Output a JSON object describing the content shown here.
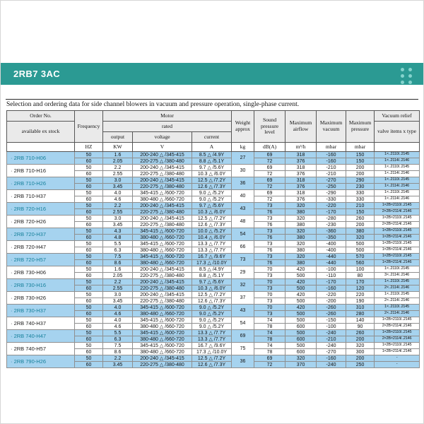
{
  "banner": {
    "title": "2RB7 3AC"
  },
  "intro": "Selection and ordering data for side channel blowers in vacuum and pressure operation, single-phase current.",
  "table": {
    "header": {
      "order_no": "Order No.",
      "available": "available ex stock",
      "frequency": "Frequency",
      "motor": "Motor",
      "rated": "rated",
      "output": "output",
      "voltage": "voltage",
      "current": "current",
      "weight": "Weight approx",
      "sound": "Sound pressure level",
      "airflow": "Maximum airflow",
      "vacuum": "Maximum vacuum",
      "pressure": "Maximum pressure",
      "relief": "Vacuum relief",
      "relief_sub": "valve items x type"
    },
    "units": {
      "frequency": "HZ",
      "output": "KW",
      "voltage": "V",
      "current": "A",
      "weight": "kg",
      "sound": "dB(A)",
      "airflow": "m³/h",
      "vacuum": "mbar",
      "pressure": "mbar"
    },
    "products": [
      {
        "order": "· 2RB 710-H06",
        "weight": "27",
        "highlight": true,
        "rows": [
          {
            "hz": "50",
            "kw": "1.6",
            "v": "200-240 △ /345-415",
            "a": "8.5 △ /4.9Y",
            "db": "69",
            "flow": "318",
            "vac": "-160",
            "press": "150",
            "relief": "1×..2110/..2145"
          },
          {
            "hz": "60",
            "kw": "2.05",
            "v": "220-275 △ /380-480",
            "a": "8.8 △ /5.1Y",
            "db": "72",
            "flow": "376",
            "vac": "-160",
            "press": "150",
            "relief": "1×..2114/..2146"
          }
        ]
      },
      {
        "order": "· 2RB 710-H16",
        "weight": "30",
        "highlight": false,
        "rows": [
          {
            "hz": "50",
            "kw": "2.2",
            "v": "200-240 △ /345-415",
            "a": "9.7 △ /5.6Y",
            "db": "69",
            "flow": "318",
            "vac": "-210",
            "press": "200",
            "relief": "1×..2110/..2145"
          },
          {
            "hz": "60",
            "kw": "2.55",
            "v": "220-275 △ /380-480",
            "a": "10.3 △ /6.0Y",
            "db": "72",
            "flow": "376",
            "vac": "-210",
            "press": "200",
            "relief": "1×..2114/..2146"
          }
        ]
      },
      {
        "order": "· 2RB 710-H26",
        "weight": "36",
        "highlight": true,
        "rows": [
          {
            "hz": "50",
            "kw": "3.0",
            "v": "200-240 △ /345-415",
            "a": "12.5 △ /7.2Y",
            "db": "69",
            "flow": "318",
            "vac": "-270",
            "press": "290",
            "relief": "1×..2110/..2145"
          },
          {
            "hz": "60",
            "kw": "3.45",
            "v": "220-275 △ /380-480",
            "a": "12.6 △ /7.3Y",
            "db": "72",
            "flow": "376",
            "vac": "-250",
            "press": "230",
            "relief": "1×..2114/..2146"
          }
        ]
      },
      {
        "order": "· 2RB 710-H37",
        "weight": "40",
        "highlight": false,
        "rows": [
          {
            "hz": "50",
            "kw": "4.0",
            "v": "345-415 △ /600-720",
            "a": "9.0 △ /5.2Y",
            "db": "69",
            "flow": "318",
            "vac": "-290",
            "press": "330",
            "relief": "1×..2110/..2145"
          },
          {
            "hz": "60",
            "kw": "4.6",
            "v": "380-480 △ /660-720",
            "a": "9.0 △ /5.2Y",
            "db": "72",
            "flow": "376",
            "vac": "-330",
            "press": "330",
            "relief": "1×..2114/..2146"
          }
        ]
      },
      {
        "order": "· 2RB 720-H16",
        "weight": "43",
        "highlight": true,
        "rows": [
          {
            "hz": "50",
            "kw": "2.2",
            "v": "200-240 △ /345-415",
            "a": "9.7 △ /5.6Y",
            "db": "73",
            "flow": "320",
            "vac": "-220",
            "press": "210",
            "relief": "1×2B×2110/..2145"
          },
          {
            "hz": "60",
            "kw": "2.55",
            "v": "220-275 △ /380-480",
            "a": "10.3 △ /6.0Y",
            "db": "76",
            "flow": "380",
            "vac": "-170",
            "press": "150",
            "relief": "2×2B×2114/..2146"
          }
        ]
      },
      {
        "order": "· 2RB 720-H26",
        "weight": "48",
        "highlight": false,
        "rows": [
          {
            "hz": "50",
            "kw": "3.0",
            "v": "200-240 △ /345-415",
            "a": "12.5 △ /7.2Y",
            "db": "73",
            "flow": "320",
            "vac": "-280",
            "press": "260",
            "relief": "1×2B×2110/..2145"
          },
          {
            "hz": "60",
            "kw": "3.45",
            "v": "220-275 △ /380-480",
            "a": "12.6 △ /7.3Y",
            "db": "76",
            "flow": "380",
            "vac": "-230",
            "press": "200",
            "relief": "2×2B×2114/..2146"
          }
        ]
      },
      {
        "order": "· 2RB 720-H37",
        "weight": "54",
        "highlight": true,
        "rows": [
          {
            "hz": "50",
            "kw": "4.3",
            "v": "345-415 △ /600-720",
            "a": "10.0 △ /5.2Y",
            "db": "73",
            "flow": "320",
            "vac": "-360",
            "press": "380",
            "relief": "1×2B×2110/..2145"
          },
          {
            "hz": "60",
            "kw": "4.8",
            "v": "380-480 △ /660-720",
            "a": "10.4 △ /6.0Y",
            "db": "76",
            "flow": "380",
            "vac": "-350",
            "press": "320",
            "relief": "1×2B×2114/..2146"
          }
        ]
      },
      {
        "order": "· 2RB 720-H47",
        "weight": "66",
        "highlight": false,
        "rows": [
          {
            "hz": "50",
            "kw": "5.5",
            "v": "345-415 △ /600-720",
            "a": "13.3 △ /7.7Y",
            "db": "73",
            "flow": "320",
            "vac": "-400",
            "press": "500",
            "relief": "1×2B×2110/..2145"
          },
          {
            "hz": "60",
            "kw": "6.3",
            "v": "380-480 △ /660-720",
            "a": "13.3 △ /7.7Y",
            "db": "76",
            "flow": "380",
            "vac": "-400",
            "press": "500",
            "relief": "1×2B×2114/..2146"
          }
        ]
      },
      {
        "order": "· 2RB 720-H57",
        "weight": "73",
        "highlight": true,
        "rows": [
          {
            "hz": "50",
            "kw": "7.5",
            "v": "345-415 △ /600-720",
            "a": "16.7 △ /9.6Y",
            "db": "73",
            "flow": "320",
            "vac": "-440",
            "press": "570",
            "relief": "1×2B×2110/..2145"
          },
          {
            "hz": "60",
            "kw": "8.6",
            "v": "380-480 △ /660-720",
            "a": "17.3 △ /10.0Y",
            "db": "76",
            "flow": "380",
            "vac": "-440",
            "press": "560",
            "relief": "1×2B×2114/..2146"
          }
        ]
      },
      {
        "order": "· 2RB 730-H06",
        "weight": "29",
        "highlight": false,
        "rows": [
          {
            "hz": "50",
            "kw": "1.6",
            "v": "200-240 △ /345-415",
            "a": "8.5 △ /4.9Y",
            "db": "70",
            "flow": "420",
            "vac": "-100",
            "press": "100",
            "relief": "1×..2110/..2145"
          },
          {
            "hz": "60",
            "kw": "2.05",
            "v": "220-275 △ /380-480",
            "a": "8.8 △ /5.1Y",
            "db": "73",
            "flow": "500",
            "vac": "-110",
            "press": "80",
            "relief": "3×..2114/..2146"
          }
        ]
      },
      {
        "order": "· 2RB 730-H16",
        "weight": "32",
        "highlight": true,
        "rows": [
          {
            "hz": "50",
            "kw": "2.2",
            "v": "200-240 △ /345-415",
            "a": "9.7 △ /5.6Y",
            "db": "70",
            "flow": "420",
            "vac": "-170",
            "press": "170",
            "relief": "1×..2110/..2145"
          },
          {
            "hz": "60",
            "kw": "2.55",
            "v": "220-275 △ /380-480",
            "a": "10.3 △ /6.0Y",
            "db": "73",
            "flow": "500",
            "vac": "-160",
            "press": "120",
            "relief": "2×..2114/..2146"
          }
        ]
      },
      {
        "order": "· 2RB 730-H26",
        "weight": "37",
        "highlight": false,
        "rows": [
          {
            "hz": "50",
            "kw": "3.0",
            "v": "200-240 △ /345-415",
            "a": "12.5 △ /7.2Y",
            "db": "70",
            "flow": "420",
            "vac": "-220",
            "press": "220",
            "relief": "1×..2110/..2145"
          },
          {
            "hz": "60",
            "kw": "3.45",
            "v": "220-275 △ /380-480",
            "a": "12.6 △ /7.3Y",
            "db": "73",
            "flow": "500",
            "vac": "-200",
            "press": "190",
            "relief": "2×..2114/..2146"
          }
        ]
      },
      {
        "order": "· 2RB 730-H37",
        "weight": "43",
        "highlight": true,
        "rows": [
          {
            "hz": "50",
            "kw": "4.0",
            "v": "345-415 △ /600-720",
            "a": "9.0 △ /5.2Y",
            "db": "70",
            "flow": "420",
            "vac": "-260",
            "press": "310",
            "relief": "1×..2110/..2145"
          },
          {
            "hz": "60",
            "kw": "4.6",
            "v": "380-480 △ /660-720",
            "a": "9.0 △ /5.2Y",
            "db": "73",
            "flow": "500",
            "vac": "-260",
            "press": "280",
            "relief": "2×..2114/..2146"
          }
        ]
      },
      {
        "order": "· 2RB 740-H37",
        "weight": "54",
        "highlight": false,
        "rows": [
          {
            "hz": "50",
            "kw": "4.0",
            "v": "345-415 △ /600-720",
            "a": "9.0 △ /5.2Y",
            "db": "74",
            "flow": "500",
            "vac": "-150",
            "press": "140",
            "relief": "1×2B×2110/..2145"
          },
          {
            "hz": "60",
            "kw": "4.6",
            "v": "380-480 △ /660-720",
            "a": "9.0 △ /5.2Y",
            "db": "78",
            "flow": "600",
            "vac": "-100",
            "press": "90",
            "relief": "2×2B×2114/..2146"
          }
        ]
      },
      {
        "order": "· 2RB 740-H47",
        "weight": "69",
        "highlight": true,
        "rows": [
          {
            "hz": "50",
            "kw": "5.5",
            "v": "345-415 △ /600-720",
            "a": "13.3 △ /7.7Y",
            "db": "74",
            "flow": "500",
            "vac": "-240",
            "press": "260",
            "relief": "1×2B×2110/..2145"
          },
          {
            "hz": "60",
            "kw": "6.3",
            "v": "380-480 △ /660-720",
            "a": "13.3 △ /7.7Y",
            "db": "78",
            "flow": "600",
            "vac": "-210",
            "press": "200",
            "relief": "2×2B×2114/..2146"
          }
        ]
      },
      {
        "order": "· 2RB 740-H57",
        "weight": "75",
        "highlight": false,
        "rows": [
          {
            "hz": "50",
            "kw": "7.5",
            "v": "345-415 △ /600-720",
            "a": "16.7 △ /9.6Y",
            "db": "74",
            "flow": "500",
            "vac": "-240",
            "press": "320",
            "relief": "1×2B×2110/..2145"
          },
          {
            "hz": "60",
            "kw": "8.6",
            "v": "380-480 △ /660-720",
            "a": "17.3 △ /10.0Y",
            "db": "78",
            "flow": "600",
            "vac": "-270",
            "press": "300",
            "relief": "1×2B×2114/..2146"
          }
        ]
      },
      {
        "order": "· 2RB 790-H26",
        "weight": "36",
        "highlight": true,
        "rows": [
          {
            "hz": "50",
            "kw": "2.2",
            "v": "200-240 △ /345-415",
            "a": "12.5 △ /7.2Y",
            "db": "69",
            "flow": "320",
            "vac": "-160",
            "press": "200",
            "relief": "-"
          },
          {
            "hz": "60",
            "kw": "3.45",
            "v": "220-275 △ /380-480",
            "a": "12.6 △ /7.3Y",
            "db": "72",
            "flow": "370",
            "vac": "-240",
            "press": "250",
            "relief": "-"
          }
        ]
      }
    ]
  }
}
